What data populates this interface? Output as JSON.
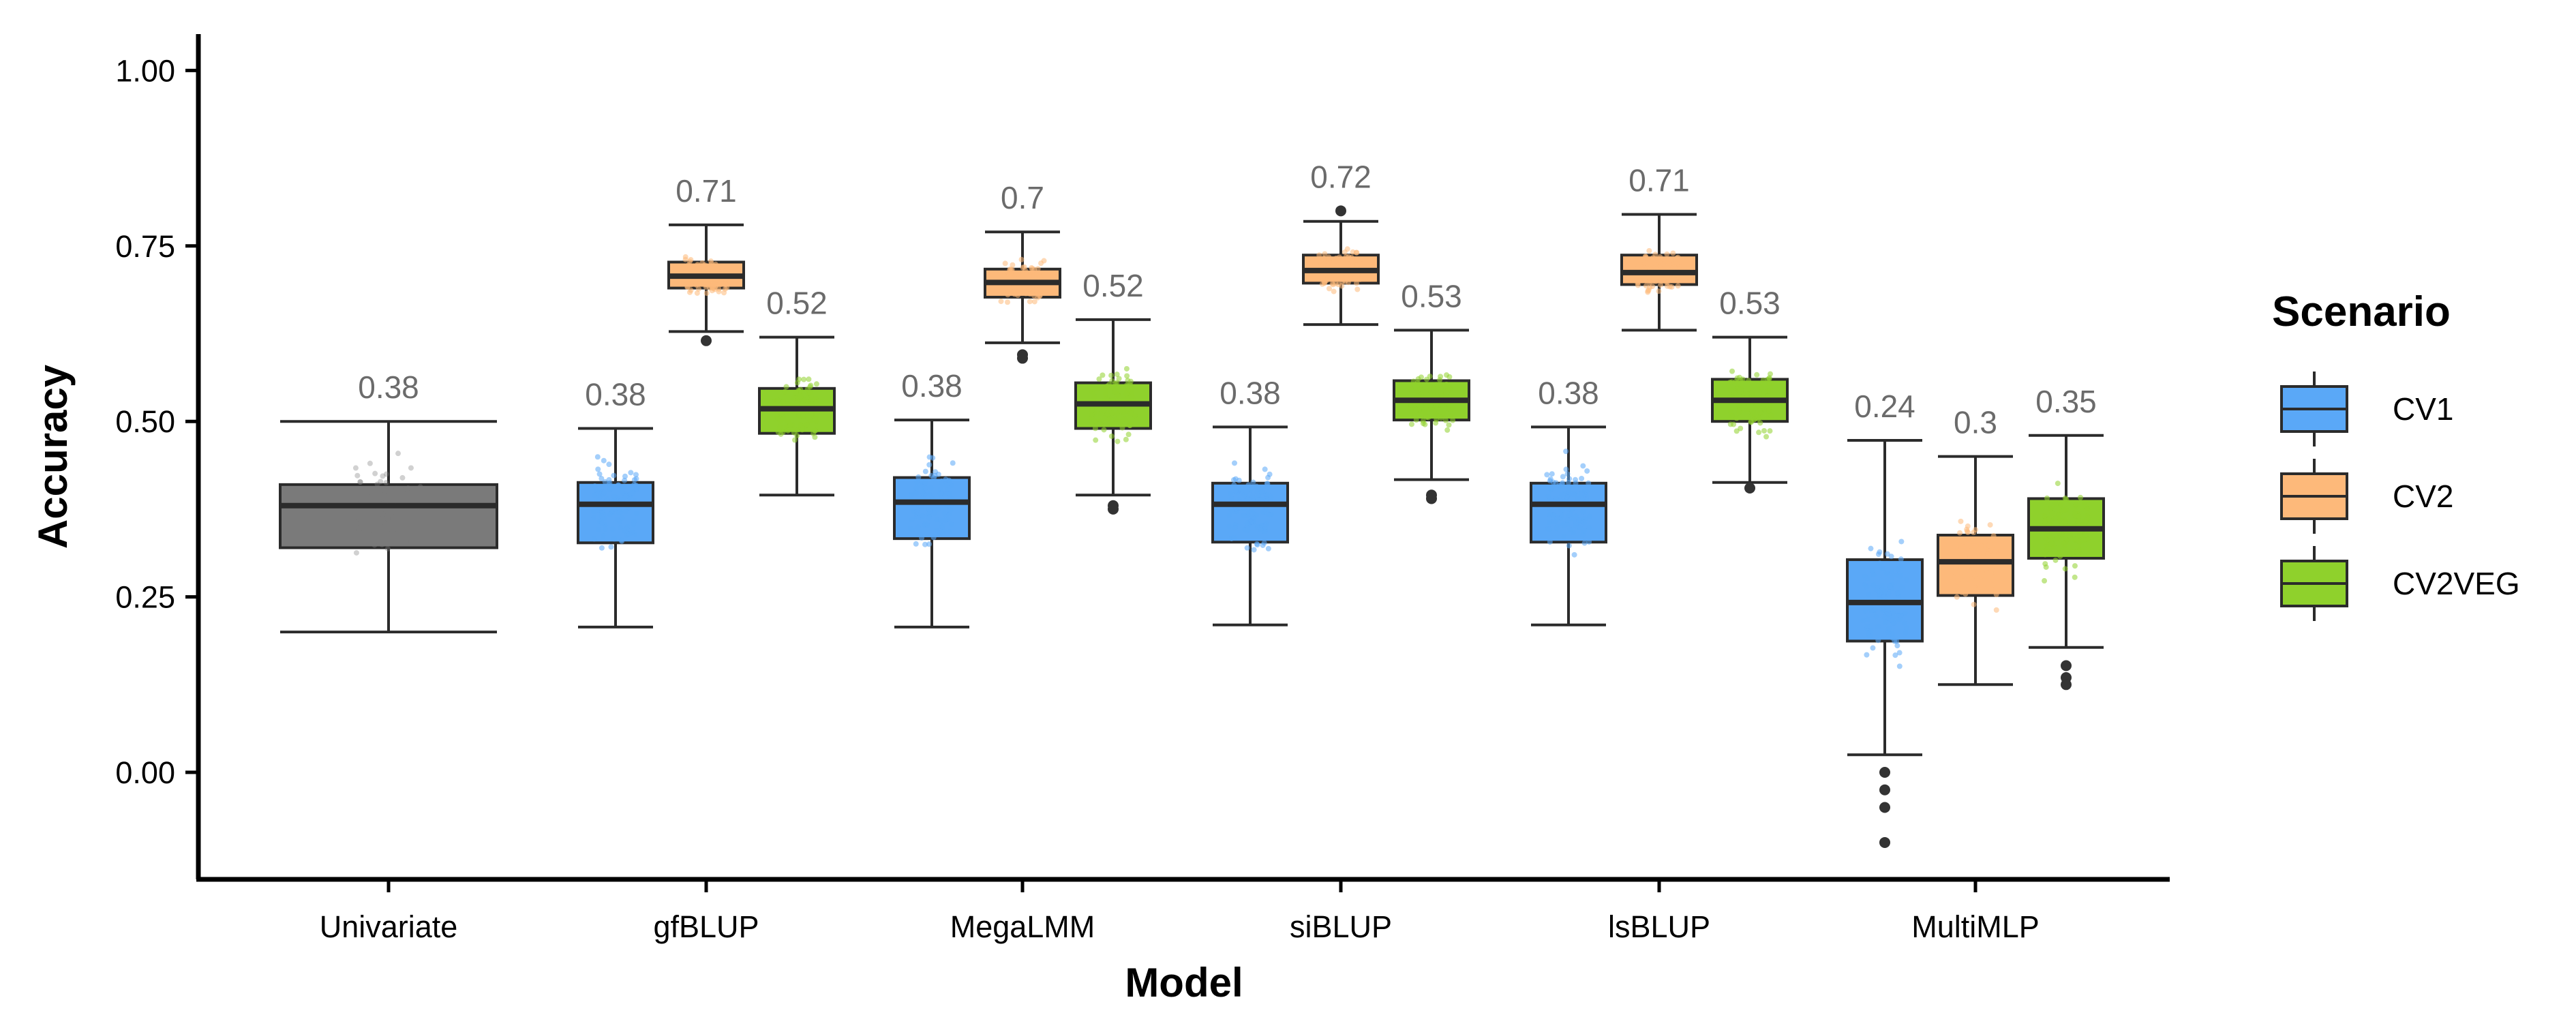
{
  "chart_data": {
    "type": "box",
    "xlabel": "Model",
    "ylabel": "Accuracy",
    "ylim": [
      -0.15,
      1.05
    ],
    "yticks": [
      "0.00",
      "0.25",
      "0.50",
      "0.75",
      "1.00"
    ],
    "ytick_values": [
      0,
      0.25,
      0.5,
      0.75,
      1.0
    ],
    "categories": [
      "Univariate",
      "gfBLUP",
      "MegaLMM",
      "siBLUP",
      "lsBLUP",
      "MultiMLP"
    ],
    "legend": {
      "title": "Scenario",
      "position": "right",
      "items": [
        {
          "label": "CV1",
          "color": "#5aa8f7"
        },
        {
          "label": "CV2",
          "color": "#fdb97a"
        },
        {
          "label": "CV2VEG",
          "color": "#8fd12c"
        }
      ]
    },
    "univariate_color": "#7a7a7a",
    "boxes": [
      {
        "model": "Univariate",
        "scenario": "Univariate",
        "label": "0.38",
        "min": 0.2,
        "q1": 0.32,
        "median": 0.38,
        "q3": 0.41,
        "max": 0.5,
        "outliers": []
      },
      {
        "model": "gfBLUP",
        "scenario": "CV1",
        "label": "0.38",
        "min": 0.207,
        "q1": 0.327,
        "median": 0.382,
        "q3": 0.413,
        "max": 0.49,
        "outliers": []
      },
      {
        "model": "gfBLUP",
        "scenario": "CV2",
        "label": "0.71",
        "min": 0.628,
        "q1": 0.69,
        "median": 0.707,
        "q3": 0.727,
        "max": 0.78,
        "outliers": [
          0.615
        ]
      },
      {
        "model": "gfBLUP",
        "scenario": "CV2VEG",
        "label": "0.52",
        "min": 0.395,
        "q1": 0.483,
        "median": 0.518,
        "q3": 0.547,
        "max": 0.62,
        "outliers": []
      },
      {
        "model": "MegaLMM",
        "scenario": "CV1",
        "label": "0.38",
        "min": 0.207,
        "q1": 0.333,
        "median": 0.385,
        "q3": 0.42,
        "max": 0.502,
        "outliers": []
      },
      {
        "model": "MegaLMM",
        "scenario": "CV2",
        "label": "0.7",
        "min": 0.612,
        "q1": 0.677,
        "median": 0.698,
        "q3": 0.717,
        "max": 0.77,
        "outliers": [
          0.595,
          0.59
        ]
      },
      {
        "model": "MegaLMM",
        "scenario": "CV2VEG",
        "label": "0.52",
        "min": 0.395,
        "q1": 0.49,
        "median": 0.525,
        "q3": 0.555,
        "max": 0.645,
        "outliers": [
          0.38,
          0.375
        ]
      },
      {
        "model": "siBLUP",
        "scenario": "CV1",
        "label": "0.38",
        "min": 0.21,
        "q1": 0.328,
        "median": 0.382,
        "q3": 0.412,
        "max": 0.492,
        "outliers": []
      },
      {
        "model": "siBLUP",
        "scenario": "CV2",
        "label": "0.72",
        "min": 0.638,
        "q1": 0.697,
        "median": 0.715,
        "q3": 0.737,
        "max": 0.785,
        "outliers": [
          0.8
        ]
      },
      {
        "model": "siBLUP",
        "scenario": "CV2VEG",
        "label": "0.53",
        "min": 0.417,
        "q1": 0.502,
        "median": 0.53,
        "q3": 0.558,
        "max": 0.63,
        "outliers": [
          0.395,
          0.39
        ]
      },
      {
        "model": "lsBLUP",
        "scenario": "CV1",
        "label": "0.38",
        "min": 0.21,
        "q1": 0.328,
        "median": 0.382,
        "q3": 0.412,
        "max": 0.492,
        "outliers": []
      },
      {
        "model": "lsBLUP",
        "scenario": "CV2",
        "label": "0.71",
        "min": 0.63,
        "q1": 0.695,
        "median": 0.712,
        "q3": 0.737,
        "max": 0.795,
        "outliers": []
      },
      {
        "model": "lsBLUP",
        "scenario": "CV2VEG",
        "label": "0.53",
        "min": 0.413,
        "q1": 0.5,
        "median": 0.53,
        "q3": 0.56,
        "max": 0.62,
        "outliers": [
          0.405
        ]
      },
      {
        "model": "MultiMLP",
        "scenario": "CV1",
        "label": "0.24",
        "min": 0.025,
        "q1": 0.187,
        "median": 0.242,
        "q3": 0.303,
        "max": 0.473,
        "outliers": [
          0.0,
          -0.025,
          -0.05,
          -0.1
        ]
      },
      {
        "model": "MultiMLP",
        "scenario": "CV2",
        "label": "0.3",
        "min": 0.125,
        "q1": 0.252,
        "median": 0.3,
        "q3": 0.338,
        "max": 0.45,
        "outliers": []
      },
      {
        "model": "MultiMLP",
        "scenario": "CV2VEG",
        "label": "0.35",
        "min": 0.178,
        "q1": 0.305,
        "median": 0.347,
        "q3": 0.39,
        "max": 0.48,
        "outliers": [
          0.152,
          0.135,
          0.125
        ]
      }
    ]
  }
}
